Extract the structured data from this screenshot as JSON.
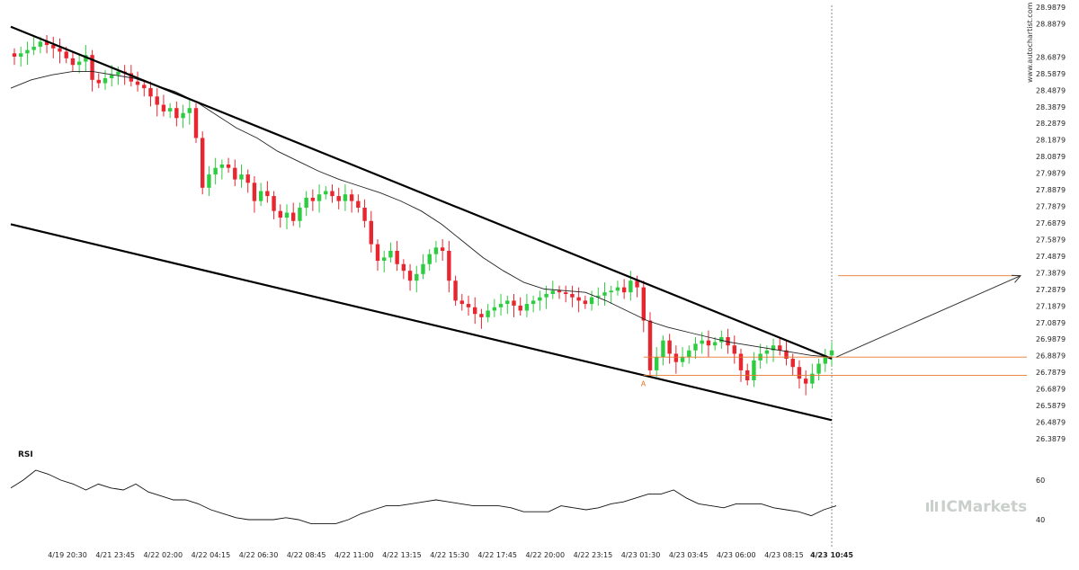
{
  "watermark": "www.autochartist.com",
  "brand": "ICMarkets",
  "colors": {
    "up": "#2ecc40",
    "down": "#e8262f",
    "trendline": "#000000",
    "ma": "#222222",
    "level": "#e8782e",
    "forecast": "#333333",
    "brand_icon": "#c9d0cc"
  },
  "chart_data": {
    "type": "candlestick",
    "ylim": [
      26.3879,
      28.9879
    ],
    "y_ticks": [
      "28.9879",
      "28.8879",
      "28.6879",
      "28.5879",
      "28.4879",
      "28.3879",
      "28.2879",
      "28.1879",
      "28.0879",
      "27.9879",
      "27.8879",
      "27.7879",
      "27.6879",
      "27.5879",
      "27.4879",
      "27.3879",
      "27.2879",
      "27.1879",
      "27.0879",
      "26.9879",
      "26.8879",
      "26.7879",
      "26.6879",
      "26.5879",
      "26.4879",
      "26.3879"
    ],
    "x_ticks": [
      "4/19 20:30",
      "4/21 23:45",
      "4/22 02:00",
      "4/22 04:15",
      "4/22 06:30",
      "4/22 08:45",
      "4/22 11:00",
      "4/22 13:15",
      "4/22 15:30",
      "4/22 17:45",
      "4/22 20:00",
      "4/22 23:15",
      "4/23 01:30",
      "4/23 03:45",
      "4/23 06:00",
      "4/23 08:15",
      "4/23 10:45"
    ],
    "close": [
      28.69,
      28.71,
      28.73,
      28.75,
      28.78,
      28.76,
      28.74,
      28.72,
      28.68,
      28.64,
      28.66,
      28.7,
      28.55,
      28.53,
      28.56,
      28.58,
      28.6,
      28.59,
      28.54,
      28.52,
      28.5,
      28.45,
      28.4,
      28.36,
      28.38,
      28.32,
      28.35,
      28.38,
      28.2,
      27.9,
      27.98,
      28.02,
      28.04,
      28.02,
      27.95,
      27.98,
      27.93,
      27.82,
      27.88,
      27.85,
      27.76,
      27.72,
      27.75,
      27.7,
      27.78,
      27.84,
      27.82,
      27.86,
      27.88,
      27.85,
      27.82,
      27.86,
      27.82,
      27.78,
      27.7,
      27.56,
      27.46,
      27.48,
      27.52,
      27.44,
      27.4,
      27.34,
      27.38,
      27.44,
      27.5,
      27.54,
      27.52,
      27.34,
      27.22,
      27.2,
      27.18,
      27.14,
      27.12,
      27.16,
      27.18,
      27.2,
      27.22,
      27.19,
      27.16,
      27.2,
      27.22,
      27.24,
      27.26,
      27.28,
      27.27,
      27.26,
      27.24,
      27.22,
      27.2,
      27.24,
      27.25,
      27.27,
      27.28,
      27.3,
      27.27,
      27.34,
      27.3,
      27.1,
      26.8,
      26.88,
      26.98,
      26.9,
      26.85,
      26.88,
      26.92,
      26.96,
      26.98,
      26.95,
      26.97,
      27.0,
      26.95,
      26.9,
      26.8,
      26.74,
      26.86,
      26.9,
      26.92,
      26.95,
      26.92,
      26.87,
      26.82,
      26.75,
      26.72,
      26.78,
      26.84,
      26.89,
      26.92
    ],
    "ma": [
      28.5,
      28.55,
      28.58,
      28.6,
      28.6,
      28.58,
      28.56,
      28.52,
      28.48,
      28.42,
      28.34,
      28.26,
      28.2,
      28.12,
      28.06,
      28.0,
      27.95,
      27.91,
      27.87,
      27.82,
      27.76,
      27.68,
      27.58,
      27.48,
      27.4,
      27.33,
      27.29,
      27.28,
      27.27,
      27.22,
      27.16,
      27.1,
      27.06,
      27.03,
      27.0,
      26.97,
      26.95,
      26.93,
      26.91,
      26.89,
      26.88
    ],
    "rsi": [
      56,
      60,
      65,
      63,
      60,
      58,
      55,
      58,
      56,
      55,
      58,
      54,
      52,
      50,
      50,
      48,
      45,
      43,
      41,
      40,
      40,
      40,
      41,
      40,
      38,
      38,
      38,
      40,
      43,
      45,
      47,
      47,
      48,
      49,
      50,
      49,
      48,
      47,
      47,
      47,
      46,
      44,
      44,
      44,
      47,
      46,
      45,
      46,
      48,
      49,
      51,
      53,
      53,
      55,
      51,
      48,
      47,
      46,
      48,
      48,
      48,
      46,
      45,
      44,
      42,
      45,
      47
    ],
    "rsi_ticks": [
      "60",
      "40"
    ],
    "rsi_title": "RSI",
    "resistance_line": [
      [
        0,
        28.87
      ],
      [
        124,
        26.87
      ]
    ],
    "support_line": [
      [
        0,
        27.68
      ],
      [
        124,
        26.5
      ]
    ],
    "level_lines": [
      26.88,
      26.77
    ],
    "target_level": 27.37,
    "point_label": "A",
    "point_label_index": 97
  }
}
